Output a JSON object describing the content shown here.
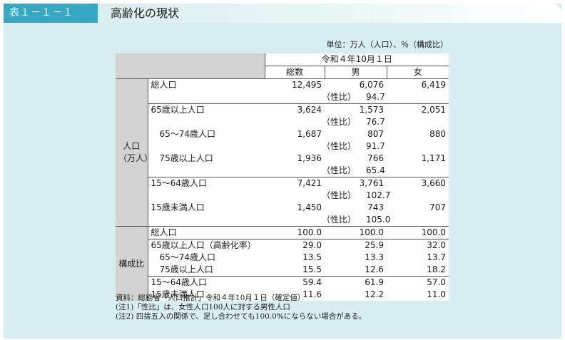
{
  "header": {
    "label": "表１－１－１",
    "title": "高齢化の現状"
  },
  "unit": "単位：万人（人口）、％（構成比）",
  "table": {
    "date_header": "令和４年10月１日",
    "col_headers": [
      "総数",
      "男",
      "女"
    ],
    "ratio_label": "（性比）",
    "population_group": "人口\n（万人）",
    "population_group_line1": "人口",
    "population_group_line2": "（万人）",
    "share_group": "構成比",
    "population_rows": [
      {
        "label": "総人口",
        "total": "12,495",
        "male": "6,076",
        "female": "6,419",
        "ratio": "94.7"
      },
      {
        "label": "65歳以上人口",
        "total": "3,624",
        "male": "1,573",
        "female": "2,051",
        "ratio": "76.7"
      },
      {
        "label": "65～74歳人口",
        "total": "1,687",
        "male": "807",
        "female": "880",
        "ratio": "91.7"
      },
      {
        "label": "75歳以上人口",
        "total": "1,936",
        "male": "766",
        "female": "1,171",
        "ratio": "65.4"
      },
      {
        "label": "15～64歳人口",
        "total": "7,421",
        "male": "3,761",
        "female": "3,660",
        "ratio": "102.7"
      },
      {
        "label": "15歳未満人口",
        "total": "1,450",
        "male": "743",
        "female": "707",
        "ratio": "105.0"
      }
    ],
    "share_rows": [
      {
        "label": "総人口",
        "total": "100.0",
        "male": "100.0",
        "female": "100.0"
      },
      {
        "label": "65歳以上人口（高齢化率）",
        "total": "29.0",
        "male": "25.9",
        "female": "32.0"
      },
      {
        "label": "65～74歳人口",
        "total": "13.5",
        "male": "13.3",
        "female": "13.7"
      },
      {
        "label": "75歳以上人口",
        "total": "15.5",
        "male": "12.6",
        "female": "18.2"
      },
      {
        "label": "15～64歳人口",
        "total": "59.4",
        "male": "61.9",
        "female": "57.0"
      },
      {
        "label": "15歳未満人口",
        "total": "11.6",
        "male": "12.2",
        "female": "11.0"
      }
    ]
  },
  "notes": [
    "資料：総務省「人口推計」令和４年10月１日（確定値）",
    "(注1)「性比」は、女性人口100人に対する男性人口",
    "(注2) 四捨五入の関係で、足し合わせても100.0%にならない場合がある。"
  ]
}
